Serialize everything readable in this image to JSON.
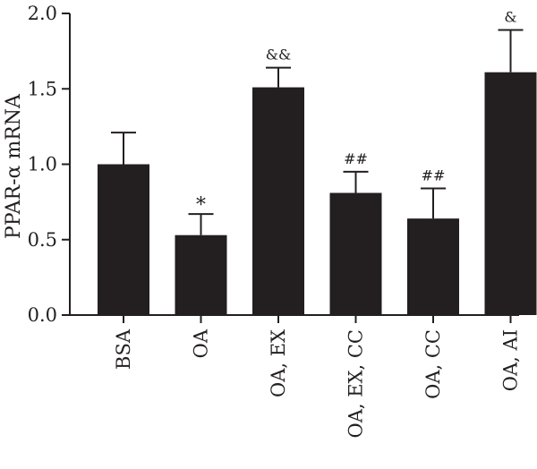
{
  "chart_data": {
    "type": "bar",
    "title": "",
    "xlabel": "",
    "ylabel": "PPAR-α mRNA",
    "ylim": [
      0,
      2.0
    ],
    "yticks": [
      "0.0",
      "0.5",
      "1.0",
      "1.5",
      "2.0"
    ],
    "ytick_values": [
      0,
      0.5,
      1.0,
      1.5,
      2.0
    ],
    "categories": [
      "BSA",
      "OA",
      "OA, EX",
      "OA, EX, CC",
      "OA, CC",
      "OA, AI"
    ],
    "values": [
      1.0,
      0.53,
      1.51,
      0.81,
      0.64,
      1.61
    ],
    "error": [
      0.21,
      0.14,
      0.13,
      0.14,
      0.2,
      0.28
    ],
    "annotations": [
      "",
      "*",
      "&&",
      "##",
      "##",
      "&"
    ],
    "bar_color": "#231f20",
    "grid": false
  }
}
